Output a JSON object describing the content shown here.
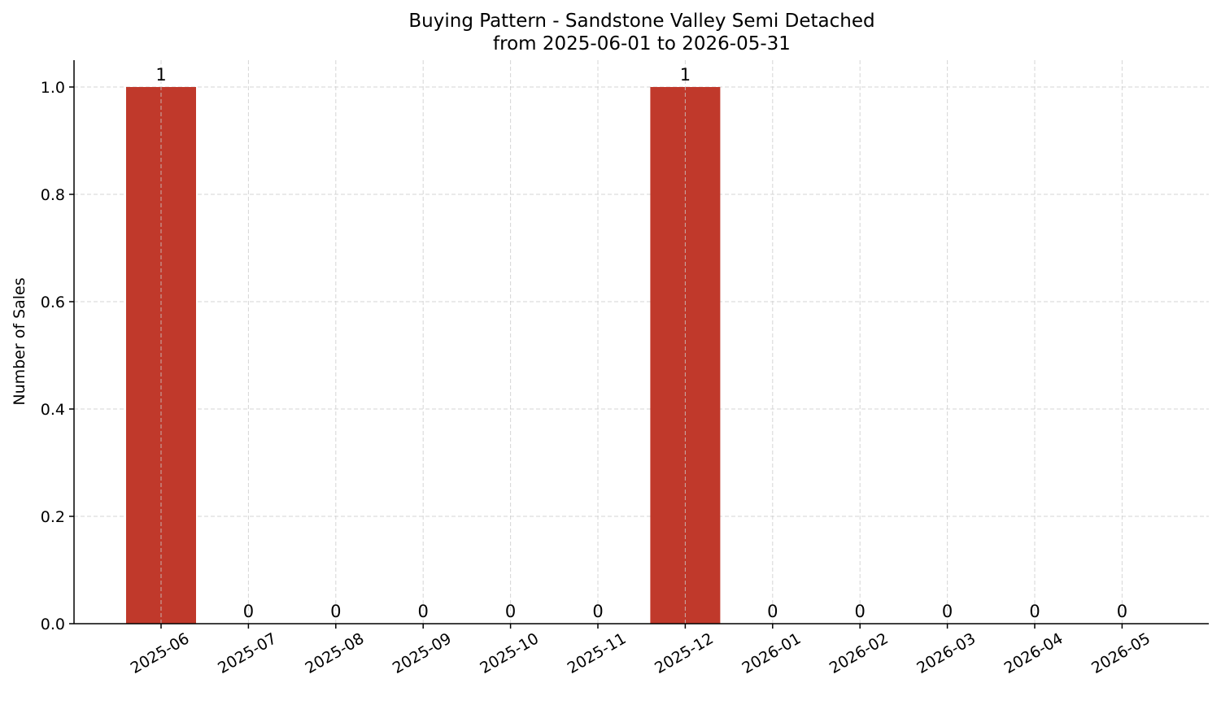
{
  "chart_data": {
    "type": "bar",
    "title": "Buying Pattern - Sandstone Valley Semi Detached",
    "subtitle": "from 2025-06-01 to 2026-05-31",
    "xlabel": "",
    "ylabel": "Number of Sales",
    "categories": [
      "2025-06",
      "2025-07",
      "2025-08",
      "2025-09",
      "2025-10",
      "2025-11",
      "2025-12",
      "2026-01",
      "2026-02",
      "2026-03",
      "2026-04",
      "2026-05"
    ],
    "values": [
      1,
      0,
      0,
      0,
      0,
      0,
      1,
      0,
      0,
      0,
      0,
      0
    ],
    "data_labels": [
      "1",
      "0",
      "0",
      "0",
      "0",
      "0",
      "1",
      "0",
      "0",
      "0",
      "0",
      "0"
    ],
    "ylim": [
      0,
      1.05
    ],
    "yticks": [
      0.0,
      0.2,
      0.4,
      0.6,
      0.8,
      1.0
    ],
    "ytick_labels": [
      "0.0",
      "0.2",
      "0.4",
      "0.6",
      "0.8",
      "1.0"
    ],
    "grid": true,
    "legend": "none",
    "bar_color": "#c0392b"
  }
}
